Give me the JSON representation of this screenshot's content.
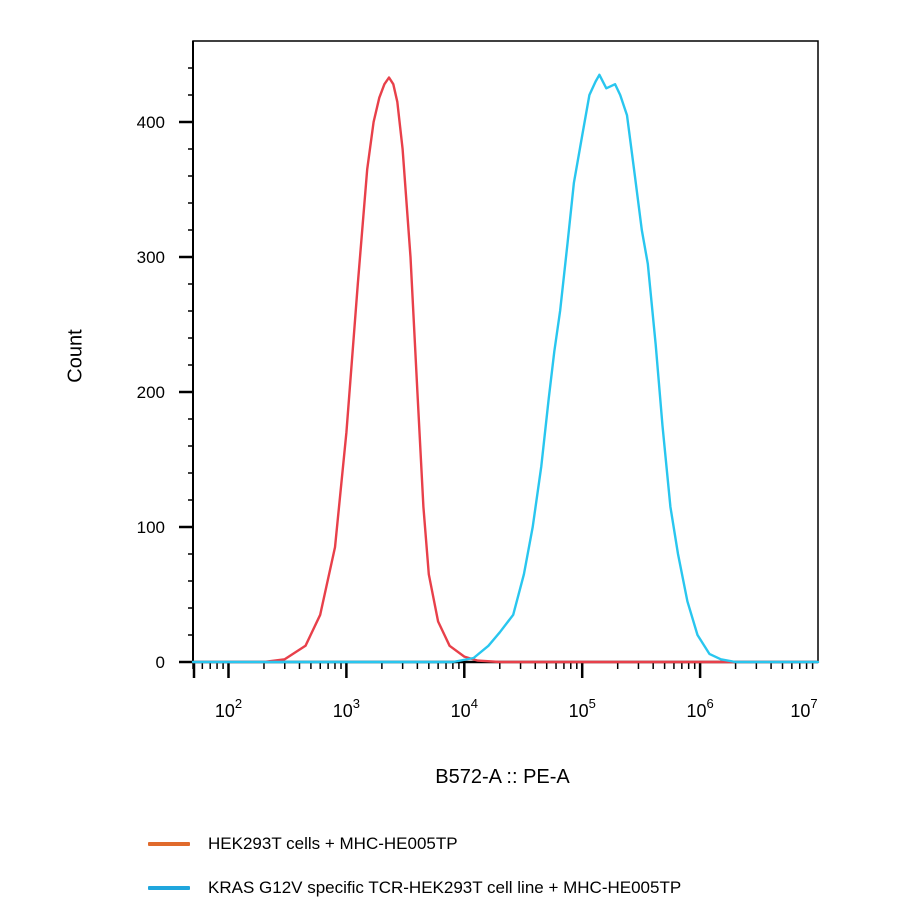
{
  "chart_data": {
    "type": "line",
    "xlabel": "B572-A :: PE-A",
    "ylabel": "Count",
    "x_scale": "log",
    "xlim": [
      50,
      10000000
    ],
    "ylim": [
      0,
      460
    ],
    "x_ticks": [
      {
        "value": 100,
        "base": "10",
        "exp": "2"
      },
      {
        "value": 1000,
        "base": "10",
        "exp": "3"
      },
      {
        "value": 10000,
        "base": "10",
        "exp": "4"
      },
      {
        "value": 100000,
        "base": "10",
        "exp": "5"
      },
      {
        "value": 1000000,
        "base": "10",
        "exp": "6"
      },
      {
        "value": 10000000,
        "base": "10",
        "exp": "7"
      }
    ],
    "y_ticks": [
      0,
      100,
      200,
      300,
      400
    ],
    "series": [
      {
        "name": "HEK293T cells + MHC-HE005TP",
        "color": "#e8404a",
        "legend_color": "#e06a2c",
        "points": [
          [
            50,
            0
          ],
          [
            200,
            0
          ],
          [
            300,
            2
          ],
          [
            450,
            12
          ],
          [
            600,
            35
          ],
          [
            800,
            85
          ],
          [
            1000,
            170
          ],
          [
            1250,
            280
          ],
          [
            1500,
            365
          ],
          [
            1700,
            400
          ],
          [
            1900,
            418
          ],
          [
            2100,
            428
          ],
          [
            2300,
            433
          ],
          [
            2500,
            428
          ],
          [
            2700,
            415
          ],
          [
            3000,
            380
          ],
          [
            3500,
            300
          ],
          [
            4000,
            200
          ],
          [
            4500,
            115
          ],
          [
            5000,
            65
          ],
          [
            6000,
            30
          ],
          [
            7500,
            12
          ],
          [
            10000,
            4
          ],
          [
            13000,
            1
          ],
          [
            20000,
            0
          ],
          [
            10000000,
            0
          ]
        ]
      },
      {
        "name": "KRAS G12V specific TCR-HEK293T cell line + MHC-HE005TP",
        "color": "#29c6ef",
        "legend_color": "#1fa6dd",
        "points": [
          [
            50,
            0
          ],
          [
            8000,
            0
          ],
          [
            12000,
            3
          ],
          [
            16000,
            12
          ],
          [
            20000,
            22
          ],
          [
            26000,
            35
          ],
          [
            32000,
            65
          ],
          [
            38000,
            100
          ],
          [
            45000,
            145
          ],
          [
            52000,
            195
          ],
          [
            58000,
            230
          ],
          [
            65000,
            260
          ],
          [
            75000,
            310
          ],
          [
            85000,
            355
          ],
          [
            100000,
            390
          ],
          [
            115000,
            420
          ],
          [
            130000,
            430
          ],
          [
            140000,
            435
          ],
          [
            160000,
            425
          ],
          [
            190000,
            428
          ],
          [
            210000,
            420
          ],
          [
            240000,
            405
          ],
          [
            280000,
            360
          ],
          [
            320000,
            320
          ],
          [
            360000,
            295
          ],
          [
            420000,
            235
          ],
          [
            480000,
            175
          ],
          [
            560000,
            115
          ],
          [
            650000,
            80
          ],
          [
            780000,
            45
          ],
          [
            950000,
            20
          ],
          [
            1200000,
            6
          ],
          [
            1500000,
            2
          ],
          [
            2000000,
            0
          ],
          [
            10000000,
            0
          ]
        ]
      }
    ]
  }
}
